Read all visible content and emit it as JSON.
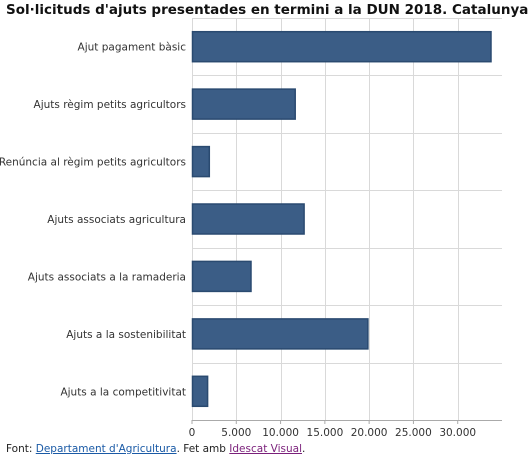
{
  "chart_data": {
    "type": "bar",
    "orientation": "horizontal",
    "title": "Sol·licituds d'ajuts presentades en termini a la DUN 2018. Catalunya",
    "categories": [
      "Ajut pagament bàsic",
      "Ajuts règim petits agricultors",
      "Renúncia al règim petits agricultors",
      "Ajuts associats agricultura",
      "Ajuts associats a la ramaderia",
      "Ajuts a la sostenibilitat",
      "Ajuts a la competitivitat"
    ],
    "values": [
      33700,
      11600,
      1900,
      12600,
      6600,
      19800,
      1700
    ],
    "xlim": [
      0,
      35000
    ],
    "ticks": [
      0,
      5000,
      10000,
      15000,
      20000,
      25000,
      30000
    ],
    "tick_labels": [
      "0",
      "5.000",
      "10.000",
      "15.000",
      "20.000",
      "25.000",
      "30.000"
    ],
    "grid": true,
    "bar_color": "#3b5d86",
    "bar_edge_color": "#2a4a70"
  },
  "footer": {
    "prefix": "Font: ",
    "source_link": "Departament d'Agricultura",
    "middle": ". Fet amb ",
    "tool_link": "Idescat Visual",
    "suffix": "."
  }
}
